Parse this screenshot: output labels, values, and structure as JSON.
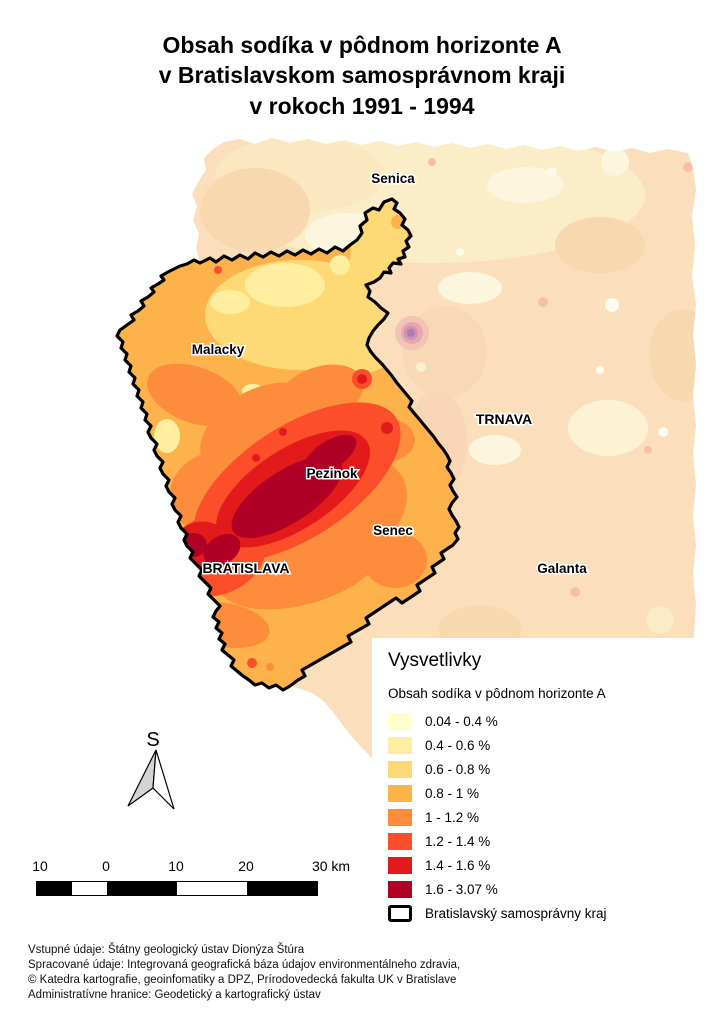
{
  "title": {
    "lines": [
      "Obsah sodíka v pôdnom horizonte A",
      "v Bratislavskom samosprávnom kraji",
      "v rokoch 1991 - 1994"
    ]
  },
  "map": {
    "labels": [
      {
        "text": "Senica"
      },
      {
        "text": "Malacky"
      },
      {
        "text": "TRNAVA"
      },
      {
        "text": "Pezinok"
      },
      {
        "text": "Senec"
      },
      {
        "text": "BRATISLAVA"
      },
      {
        "text": "Galanta"
      }
    ]
  },
  "legend": {
    "title": "Vysvetlivky",
    "subtitle": "Obsah sodíka v pôdnom horizonte A",
    "classes": [
      {
        "label": "0.04 - 0.4 %",
        "color": "#FFFFCC"
      },
      {
        "label": "0.4 - 0.6 %",
        "color": "#FFEDA0"
      },
      {
        "label": "0.6 - 0.8 %",
        "color": "#FED976"
      },
      {
        "label": "0.8 - 1 %",
        "color": "#FEB24C"
      },
      {
        "label": "1 - 1.2 %",
        "color": "#FD8D3C"
      },
      {
        "label": "1.2 - 1.4 %",
        "color": "#FC4E2A"
      },
      {
        "label": "1.4 - 1.6 %",
        "color": "#E31A1C"
      },
      {
        "label": "1.6 - 3.07 %",
        "color": "#B10026"
      }
    ],
    "boundary_item": {
      "label": "Bratislavský samosprávny kraj"
    }
  },
  "north_arrow": {
    "label": "S"
  },
  "scale_bar": {
    "labels": [
      "10",
      "0",
      "10",
      "20",
      "30 km"
    ],
    "unit": "km"
  },
  "credits": {
    "lines": [
      "Vstupné údaje: Štátny geologický ústav Dionýza Štúra",
      "Spracované údaje: Integrovaná geografická báza údajov environmentálneho zdravia,",
      "© Katedra kartografie, geoinfomatiky a DPZ, Prírodovedecká fakulta UK v Bratislave",
      "Administratívne hranice: Geodetický a kartografický ústav"
    ]
  },
  "colors": {
    "page_background": "#FFFFFF",
    "legend_background": "#FFFFFF",
    "region_boundary": "#000000",
    "outside_surface_base": "#FBDFBC",
    "outside_surface_light": "#FCEDC9",
    "outside_surface_cream": "#FDF6DE",
    "anomaly_core": "#AB7DB5",
    "anomaly_ring": "#E7A7AD"
  }
}
